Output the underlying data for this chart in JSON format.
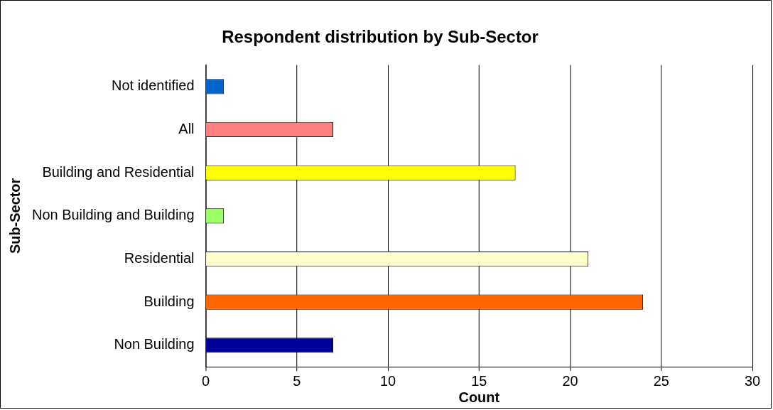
{
  "chart_data": {
    "type": "bar",
    "orientation": "horizontal",
    "title": "Respondent distribution by Sub-Sector",
    "xlabel": "Count",
    "ylabel": "Sub-Sector",
    "categories": [
      "Not identified",
      "All",
      "Building and Residential",
      "Non Building and Building",
      "Residential",
      "Building",
      "Non Building"
    ],
    "values": [
      1,
      7,
      17,
      1,
      21,
      24,
      7
    ],
    "colors": [
      "#0066cc",
      "#ff8080",
      "#ffff00",
      "#99ff66",
      "#ffffcc",
      "#ff6600",
      "#000099"
    ],
    "xlim": [
      0,
      30
    ],
    "xticks": [
      0,
      5,
      10,
      15,
      20,
      25,
      30
    ],
    "grid": "x",
    "legend": false
  }
}
